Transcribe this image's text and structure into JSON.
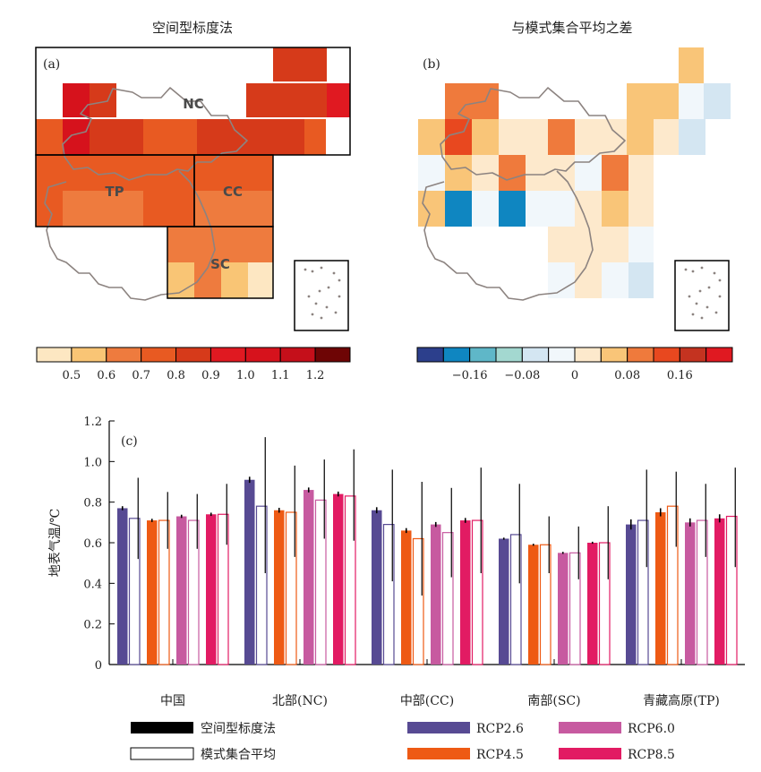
{
  "map_a": {
    "letter": "(a)",
    "title": "空间型标度法",
    "regions": [
      "NC",
      "TP",
      "CC",
      "SC"
    ],
    "colorbar": {
      "colors": [
        "#fde7c2",
        "#f9c575",
        "#ee7b3e",
        "#e85a22",
        "#d63a1a",
        "#e01921",
        "#d6121c",
        "#c50f1a",
        "#6e0505"
      ],
      "labels": [
        "0.5",
        "0.6",
        "0.7",
        "0.8",
        "0.9",
        "1.0",
        "1.1",
        "1.2"
      ]
    }
  },
  "map_b": {
    "letter": "(b)",
    "title": "与模式集合平均之差",
    "colorbar": {
      "colors": [
        "#2c3f8c",
        "#0f86c1",
        "#5fb7c8",
        "#a3d8d0",
        "#d4e6f2",
        "#f1f7fb",
        "#fde9cc",
        "#f9c578",
        "#ef7a3c",
        "#e8481f",
        "#c43320",
        "#e01921"
      ],
      "labels": [
        "−0.16",
        "−0.08",
        "0",
        "0.08",
        "0.16"
      ]
    }
  },
  "chart_data": {
    "type": "bar",
    "panel_letter": "(c)",
    "ylabel": "地表气温/℃",
    "ylim": [
      0,
      1.2
    ],
    "yticks": [
      "0",
      "0.2",
      "0.4",
      "0.6",
      "0.8",
      "1.0",
      "1.2"
    ],
    "categories": [
      "中国",
      "北部(NC)",
      "中部(CC)",
      "南部(SC)",
      "青藏高原(TP)"
    ],
    "series": [
      {
        "name": "RCP2.6",
        "color": "#574a93",
        "spatial": [
          0.77,
          0.91,
          0.76,
          0.62,
          0.69
        ],
        "spatial_err": [
          0.01,
          0.015,
          0.015,
          0.005,
          0.025
        ],
        "ensemble": [
          0.72,
          0.78,
          0.69,
          0.64,
          0.71
        ],
        "ens_low": [
          0.52,
          0.45,
          0.41,
          0.4,
          0.48
        ],
        "ens_high": [
          0.92,
          1.12,
          0.96,
          0.89,
          0.96
        ]
      },
      {
        "name": "RCP4.5",
        "color": "#ee5a14",
        "spatial": [
          0.71,
          0.76,
          0.66,
          0.59,
          0.75
        ],
        "spatial_err": [
          0.008,
          0.012,
          0.012,
          0.005,
          0.02
        ],
        "ensemble": [
          0.71,
          0.75,
          0.62,
          0.59,
          0.78
        ],
        "ens_low": [
          0.57,
          0.53,
          0.34,
          0.45,
          0.58
        ],
        "ens_high": [
          0.85,
          0.98,
          0.9,
          0.73,
          0.95
        ]
      },
      {
        "name": "RCP6.0",
        "color": "#c75aa0",
        "spatial": [
          0.73,
          0.86,
          0.69,
          0.55,
          0.7
        ],
        "spatial_err": [
          0.008,
          0.012,
          0.012,
          0.005,
          0.02
        ],
        "ensemble": [
          0.71,
          0.81,
          0.65,
          0.55,
          0.71
        ],
        "ens_low": [
          0.57,
          0.62,
          0.43,
          0.42,
          0.53
        ],
        "ens_high": [
          0.84,
          1.01,
          0.87,
          0.68,
          0.89
        ]
      },
      {
        "name": "RCP8.5",
        "color": "#e21b63",
        "spatial": [
          0.74,
          0.84,
          0.71,
          0.6,
          0.72
        ],
        "spatial_err": [
          0.008,
          0.012,
          0.012,
          0.005,
          0.02
        ],
        "ensemble": [
          0.74,
          0.83,
          0.71,
          0.6,
          0.73
        ],
        "ens_low": [
          0.59,
          0.61,
          0.45,
          0.42,
          0.48
        ],
        "ens_high": [
          0.89,
          1.06,
          0.97,
          0.78,
          0.97
        ]
      }
    ],
    "legend": {
      "spatial_label": "空间型标度法",
      "ensemble_label": "模式集合平均"
    }
  }
}
